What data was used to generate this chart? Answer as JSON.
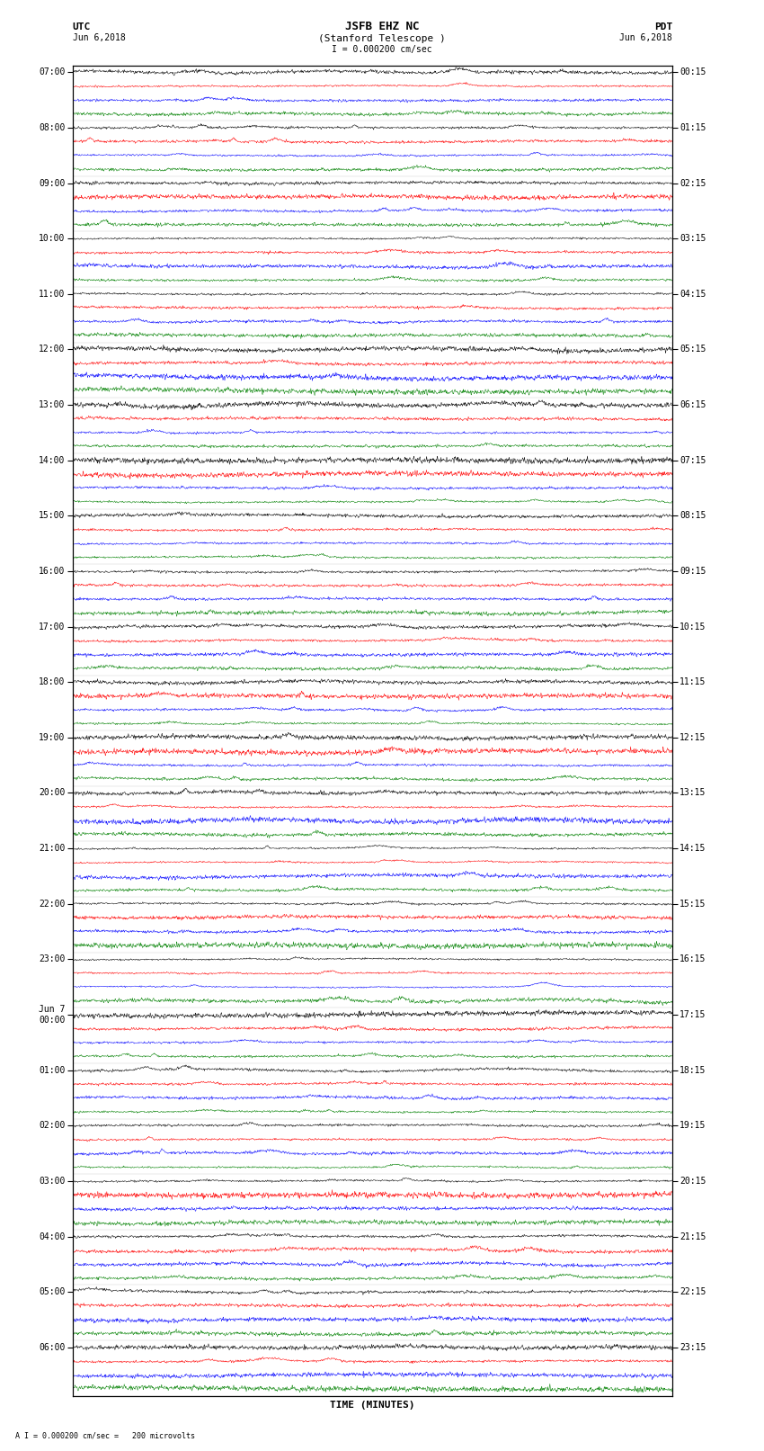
{
  "title_line1": "JSFB EHZ NC",
  "title_line2": "(Stanford Telescope )",
  "scale_label": "I = 0.000200 cm/sec",
  "bottom_label": "A I = 0.000200 cm/sec =   200 microvolts",
  "utc_label": "UTC",
  "utc_date": "Jun 6,2018",
  "pdt_label": "PDT",
  "pdt_date": "Jun 6,2018",
  "xlabel": "TIME (MINUTES)",
  "xlim": [
    0,
    15
  ],
  "background_color": "#ffffff",
  "trace_colors": [
    "black",
    "red",
    "blue",
    "green"
  ],
  "left_hour_labels": [
    "07:00",
    "08:00",
    "09:00",
    "10:00",
    "11:00",
    "12:00",
    "13:00",
    "14:00",
    "15:00",
    "16:00",
    "17:00",
    "18:00",
    "19:00",
    "20:00",
    "21:00",
    "22:00",
    "23:00",
    "Jun 7\n00:00",
    "01:00",
    "02:00",
    "03:00",
    "04:00",
    "05:00",
    "06:00"
  ],
  "right_hour_labels": [
    "00:15",
    "01:15",
    "02:15",
    "03:15",
    "04:15",
    "05:15",
    "06:15",
    "07:15",
    "08:15",
    "09:15",
    "10:15",
    "11:15",
    "12:15",
    "13:15",
    "14:15",
    "15:15",
    "16:15",
    "17:15",
    "18:15",
    "19:15",
    "20:15",
    "21:15",
    "22:15",
    "23:15"
  ],
  "n_hours": 24,
  "traces_per_hour": 4,
  "amplitude": 0.38,
  "noise_seed": 42,
  "font_size": 7,
  "title_font_size": 8,
  "lw": 0.35
}
